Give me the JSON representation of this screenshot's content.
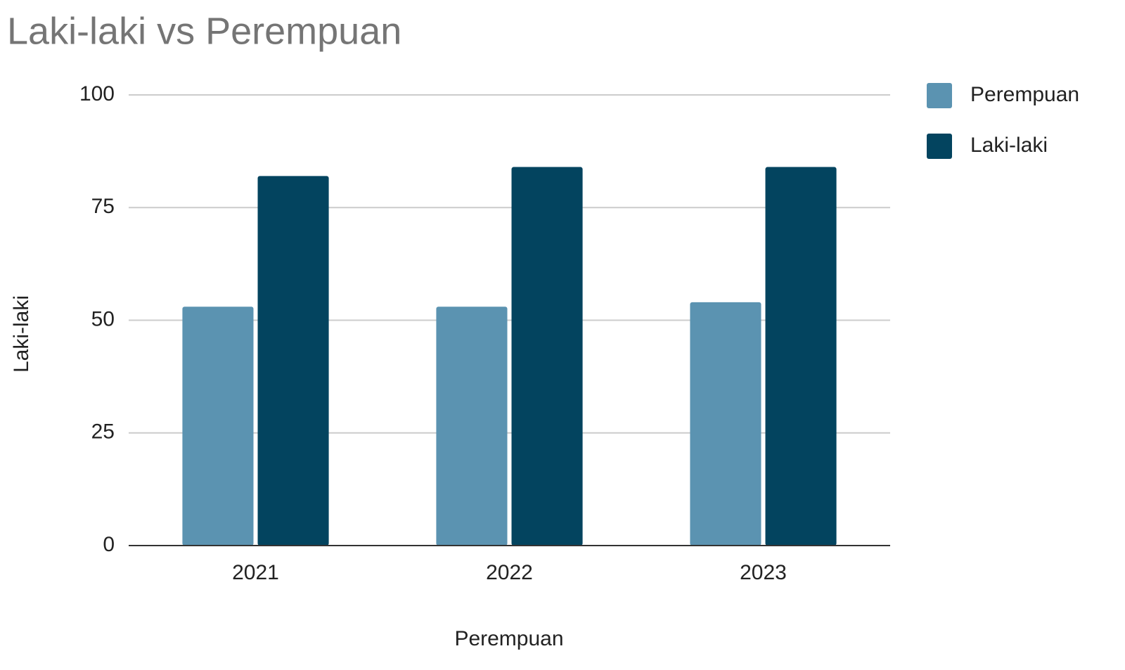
{
  "chart_data": {
    "type": "bar",
    "title": "Laki-laki vs Perempuan",
    "x_label": "Perempuan",
    "y_label": "Laki-laki",
    "categories": [
      "2021",
      "2022",
      "2023"
    ],
    "series": [
      {
        "name": "Perempuan",
        "color": "#5b93b1",
        "values": [
          53,
          53,
          54
        ]
      },
      {
        "name": "Laki-laki",
        "color": "#03445f",
        "values": [
          82,
          84,
          84
        ]
      }
    ],
    "ylim": [
      0,
      100
    ],
    "yticks": [
      0,
      25,
      50,
      75,
      100
    ],
    "grid": true,
    "legend": "right"
  }
}
